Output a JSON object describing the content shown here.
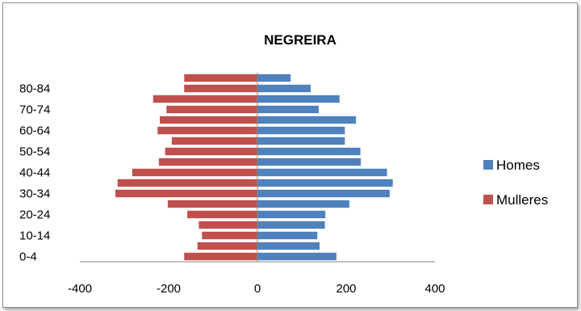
{
  "chart_data": {
    "type": "bar",
    "orientation": "horizontal",
    "title": "NEGREIRA",
    "xlabel": "",
    "ylabel": "",
    "xlim": [
      -400,
      400
    ],
    "x_ticks": [
      "-400",
      "-200",
      "0",
      "200",
      "400"
    ],
    "x_tick_values": [
      -400,
      -200,
      0,
      200,
      400
    ],
    "categories": [
      "0-4",
      "5-9",
      "10-14",
      "15-19",
      "20-24",
      "25-29",
      "30-34",
      "35-39",
      "40-44",
      "45-49",
      "50-54",
      "55-59",
      "60-64",
      "65-69",
      "70-74",
      "75-79",
      "80-84",
      "85+"
    ],
    "visible_category_labels": [
      "0-4",
      "10-14",
      "20-24",
      "30-34",
      "40-44",
      "50-54",
      "60-64",
      "70-74",
      "80-84"
    ],
    "series": [
      {
        "name": "Homes",
        "color": "#4f81bd",
        "values": [
          178,
          140,
          135,
          152,
          153,
          207,
          298,
          305,
          292,
          233,
          232,
          197,
          197,
          222,
          138,
          185,
          120,
          75
        ]
      },
      {
        "name": "Mulleres",
        "color": "#c0504d",
        "values": [
          -165,
          -135,
          -125,
          -132,
          -158,
          -202,
          -320,
          -315,
          -282,
          -222,
          -208,
          -193,
          -225,
          -220,
          -205,
          -235,
          -165,
          -165
        ]
      }
    ],
    "grid": false,
    "legend_position": "right"
  }
}
